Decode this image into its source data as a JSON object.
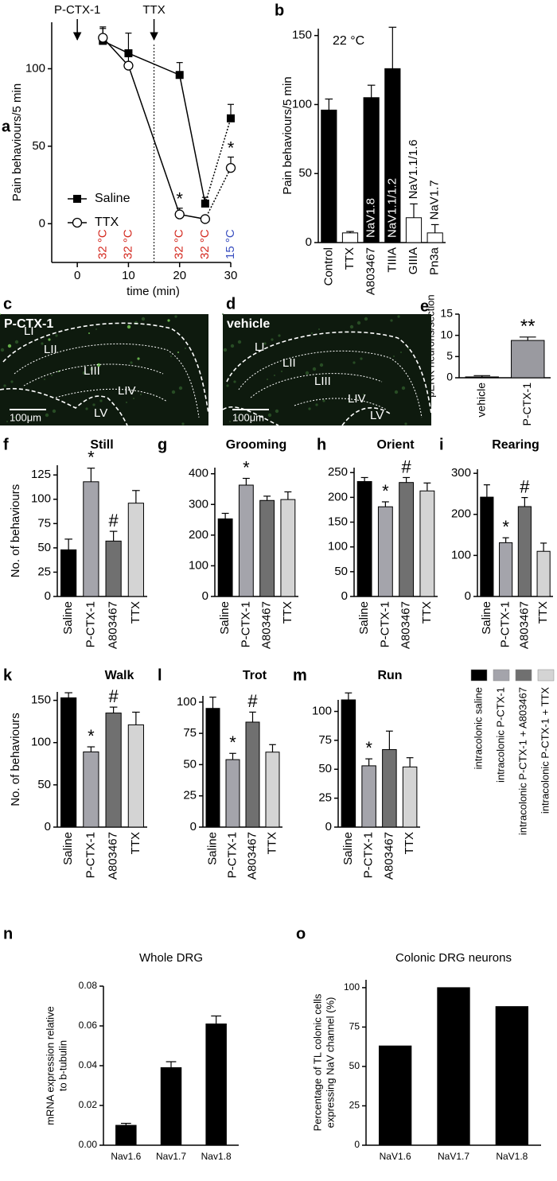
{
  "chart_data": [
    {
      "type": "line",
      "panel": "a",
      "ylabel": "Pain behaviours/5 min",
      "xlabel": "time (min)",
      "x": [
        5,
        10,
        20,
        25,
        30
      ],
      "series": [
        {
          "name": "Saline",
          "color": "#000000",
          "marker": "square",
          "values": [
            118,
            110,
            96,
            13,
            68
          ],
          "errors": [
            8,
            13,
            8,
            4,
            9
          ]
        },
        {
          "name": "TTX",
          "color": "#000000",
          "marker": "open-circle",
          "values": [
            120,
            102,
            6,
            3,
            36
          ],
          "errors": [
            7,
            8,
            4,
            2,
            7
          ],
          "markers": [
            null,
            null,
            "*",
            null,
            "*"
          ]
        }
      ],
      "x_labels": [
        "32 °C",
        "32 °C",
        "32 °C",
        "32 °C",
        "15 °C"
      ],
      "x_label_colors": [
        "#d42a20",
        "#d42a20",
        "#d42a20",
        "#d42a20",
        "#3a4fc0"
      ],
      "events": [
        {
          "label": "P-CTX-1",
          "x": 0
        },
        {
          "label": "TTX",
          "x": 15
        }
      ],
      "xlim": [
        -5,
        30
      ],
      "xticks": [
        0,
        10,
        20,
        30
      ],
      "ylim": [
        -25,
        130
      ],
      "yticks": [
        0,
        50,
        100
      ],
      "legend": "left"
    },
    {
      "type": "bar",
      "panel": "b",
      "title": "22 °C",
      "ylabel": "Pain behaviours/5 min",
      "categories": [
        "Control",
        "TTX",
        "A803467",
        "TIIIA",
        "GIIIA",
        "Pn3a"
      ],
      "values": [
        96,
        7,
        105,
        126,
        18,
        7
      ],
      "errors": [
        8,
        1,
        9,
        30,
        10,
        6
      ],
      "colors": [
        "#000000",
        "#ffffff",
        "#000000",
        "#000000",
        "#ffffff",
        "#ffffff"
      ],
      "bar_labels": [
        null,
        null,
        "NaV1.8",
        "NaV1.1/1.2",
        "NaV1.1/1.6",
        "NaV1.7"
      ],
      "ylim": [
        0,
        155
      ],
      "yticks": [
        0,
        50,
        100,
        150
      ]
    },
    {
      "type": "bar",
      "panel": "e",
      "ylabel": "pERK neurons/section",
      "categories": [
        "vehicle",
        "P-CTX-1"
      ],
      "values": [
        0.2,
        8.8
      ],
      "errors": [
        0.3,
        0.8
      ],
      "colors": [
        "#000000",
        "#9a9aa0"
      ],
      "markers": [
        null,
        "**"
      ],
      "ylim": [
        0,
        15
      ],
      "yticks": [
        0,
        5,
        10,
        15
      ]
    },
    {
      "type": "bar",
      "panel": "f",
      "title": "Still",
      "ylabel": "No. of behaviours",
      "categories": [
        "Saline",
        "P-CTX-1",
        "A803467",
        "TTX"
      ],
      "values": [
        48,
        118,
        57,
        96
      ],
      "errors": [
        11,
        14,
        10,
        13
      ],
      "colors": [
        "#000000",
        "#a4a4ab",
        "#707070",
        "#d4d4d4"
      ],
      "markers": [
        null,
        "*",
        "#",
        null
      ],
      "ylim": [
        0,
        135
      ],
      "yticks": [
        0,
        25,
        50,
        75,
        100,
        125
      ]
    },
    {
      "type": "bar",
      "panel": "g",
      "title": "Grooming",
      "categories": [
        "Saline",
        "P-CTX-1",
        "A803467",
        "TTX"
      ],
      "values": [
        253,
        363,
        313,
        316
      ],
      "errors": [
        18,
        22,
        14,
        25
      ],
      "colors": [
        "#000000",
        "#a4a4ab",
        "#707070",
        "#d4d4d4"
      ],
      "markers": [
        null,
        "*",
        null,
        null
      ],
      "ylim": [
        0,
        420
      ],
      "yticks": [
        0,
        100,
        200,
        300,
        400
      ]
    },
    {
      "type": "bar",
      "panel": "h",
      "title": "Orient",
      "categories": [
        "Saline",
        "P-CTX-1",
        "A803467",
        "TTX"
      ],
      "values": [
        232,
        181,
        230,
        213
      ],
      "errors": [
        8,
        10,
        10,
        16
      ],
      "colors": [
        "#000000",
        "#a4a4ab",
        "#707070",
        "#d4d4d4"
      ],
      "markers": [
        null,
        "*",
        "#",
        null
      ],
      "ylim": [
        0,
        260
      ],
      "yticks": [
        0,
        50,
        100,
        150,
        200,
        250
      ]
    },
    {
      "type": "bar",
      "panel": "i",
      "title": "Rearing",
      "categories": [
        "Saline",
        "P-CTX-1",
        "A803467",
        "TTX"
      ],
      "values": [
        242,
        131,
        219,
        110
      ],
      "errors": [
        30,
        12,
        22,
        20
      ],
      "colors": [
        "#000000",
        "#a4a4ab",
        "#707070",
        "#d4d4d4"
      ],
      "markers": [
        null,
        "*",
        "#",
        null
      ],
      "ylim": [
        0,
        310
      ],
      "yticks": [
        0,
        100,
        200,
        300
      ]
    },
    {
      "type": "bar",
      "panel": "k",
      "title": "Walk",
      "ylabel": "No. of behaviours",
      "categories": [
        "Saline",
        "P-CTX-1",
        "A803467",
        "TTX"
      ],
      "values": [
        153,
        89,
        135,
        121
      ],
      "errors": [
        6,
        6,
        7,
        15
      ],
      "colors": [
        "#000000",
        "#a4a4ab",
        "#707070",
        "#d4d4d4"
      ],
      "markers": [
        null,
        "*",
        "#",
        null
      ],
      "ylim": [
        0,
        160
      ],
      "yticks": [
        0,
        50,
        100,
        150
      ]
    },
    {
      "type": "bar",
      "panel": "l",
      "title": "Trot",
      "categories": [
        "Saline",
        "P-CTX-1",
        "A803467",
        "TTX"
      ],
      "values": [
        95,
        54,
        84,
        60
      ],
      "errors": [
        9,
        5,
        8,
        6
      ],
      "colors": [
        "#000000",
        "#a4a4ab",
        "#707070",
        "#d4d4d4"
      ],
      "markers": [
        null,
        "*",
        "#",
        null
      ],
      "ylim": [
        0,
        105
      ],
      "yticks": [
        0,
        25,
        50,
        75,
        100
      ]
    },
    {
      "type": "bar",
      "panel": "m",
      "title": "Run",
      "categories": [
        "Saline",
        "P-CTX-1",
        "A803467",
        "TTX"
      ],
      "values": [
        110,
        53,
        67,
        52
      ],
      "errors": [
        6,
        6,
        16,
        8
      ],
      "colors": [
        "#000000",
        "#a4a4ab",
        "#707070",
        "#d4d4d4"
      ],
      "markers": [
        null,
        "*",
        null,
        null
      ],
      "ylim": [
        0,
        110
      ],
      "yticks": [
        0,
        25,
        50,
        75,
        100
      ]
    },
    {
      "type": "bar",
      "panel": "n",
      "title": "Whole DRG",
      "ylabel": [
        "mRNA expression relative",
        "to b-tubulin"
      ],
      "categories": [
        "Nav1.6",
        "Nav1.7",
        "Nav1.8"
      ],
      "values": [
        0.01,
        0.039,
        0.061
      ],
      "errors": [
        0.001,
        0.003,
        0.004
      ],
      "colors": [
        "#000000",
        "#000000",
        "#000000"
      ],
      "ylim": [
        0,
        0.08
      ],
      "yticks": [
        {
          "value": 0,
          "label": "0.00"
        },
        0.02,
        0.04,
        0.06,
        0.08
      ]
    },
    {
      "type": "bar",
      "panel": "o",
      "title": "Colonic DRG neurons",
      "ylabel": [
        "Percentage of TL colonic cells",
        "expressing NaV channel (%)"
      ],
      "categories": [
        "NaV1.6",
        "NaV1.7",
        "NaV1.8"
      ],
      "values": [
        63,
        100,
        88
      ],
      "colors": [
        "#000000",
        "#000000",
        "#000000"
      ],
      "ylim": [
        0,
        105
      ],
      "yticks": [
        0,
        25,
        50,
        75,
        100
      ]
    }
  ],
  "legend": {
    "labels": [
      "intracolonic saline",
      "intracolonic P-CTX-1",
      "intracolonic P-CTX-1 + A803467",
      "intracolonic P-CTX-1 + TTX"
    ],
    "colors": [
      "#000000",
      "#a4a4ab",
      "#707070",
      "#d4d4d4"
    ]
  },
  "images": [
    {
      "panel": "c",
      "label": "P-CTX-1",
      "layers": [
        "LI",
        "LII",
        "LIII",
        "LIV",
        "LV"
      ],
      "scale": "100μm"
    },
    {
      "panel": "d",
      "label": "vehicle",
      "layers": [
        "LI",
        "LII",
        "LIII",
        "LIV",
        "LV"
      ],
      "scale": "100μm"
    }
  ]
}
